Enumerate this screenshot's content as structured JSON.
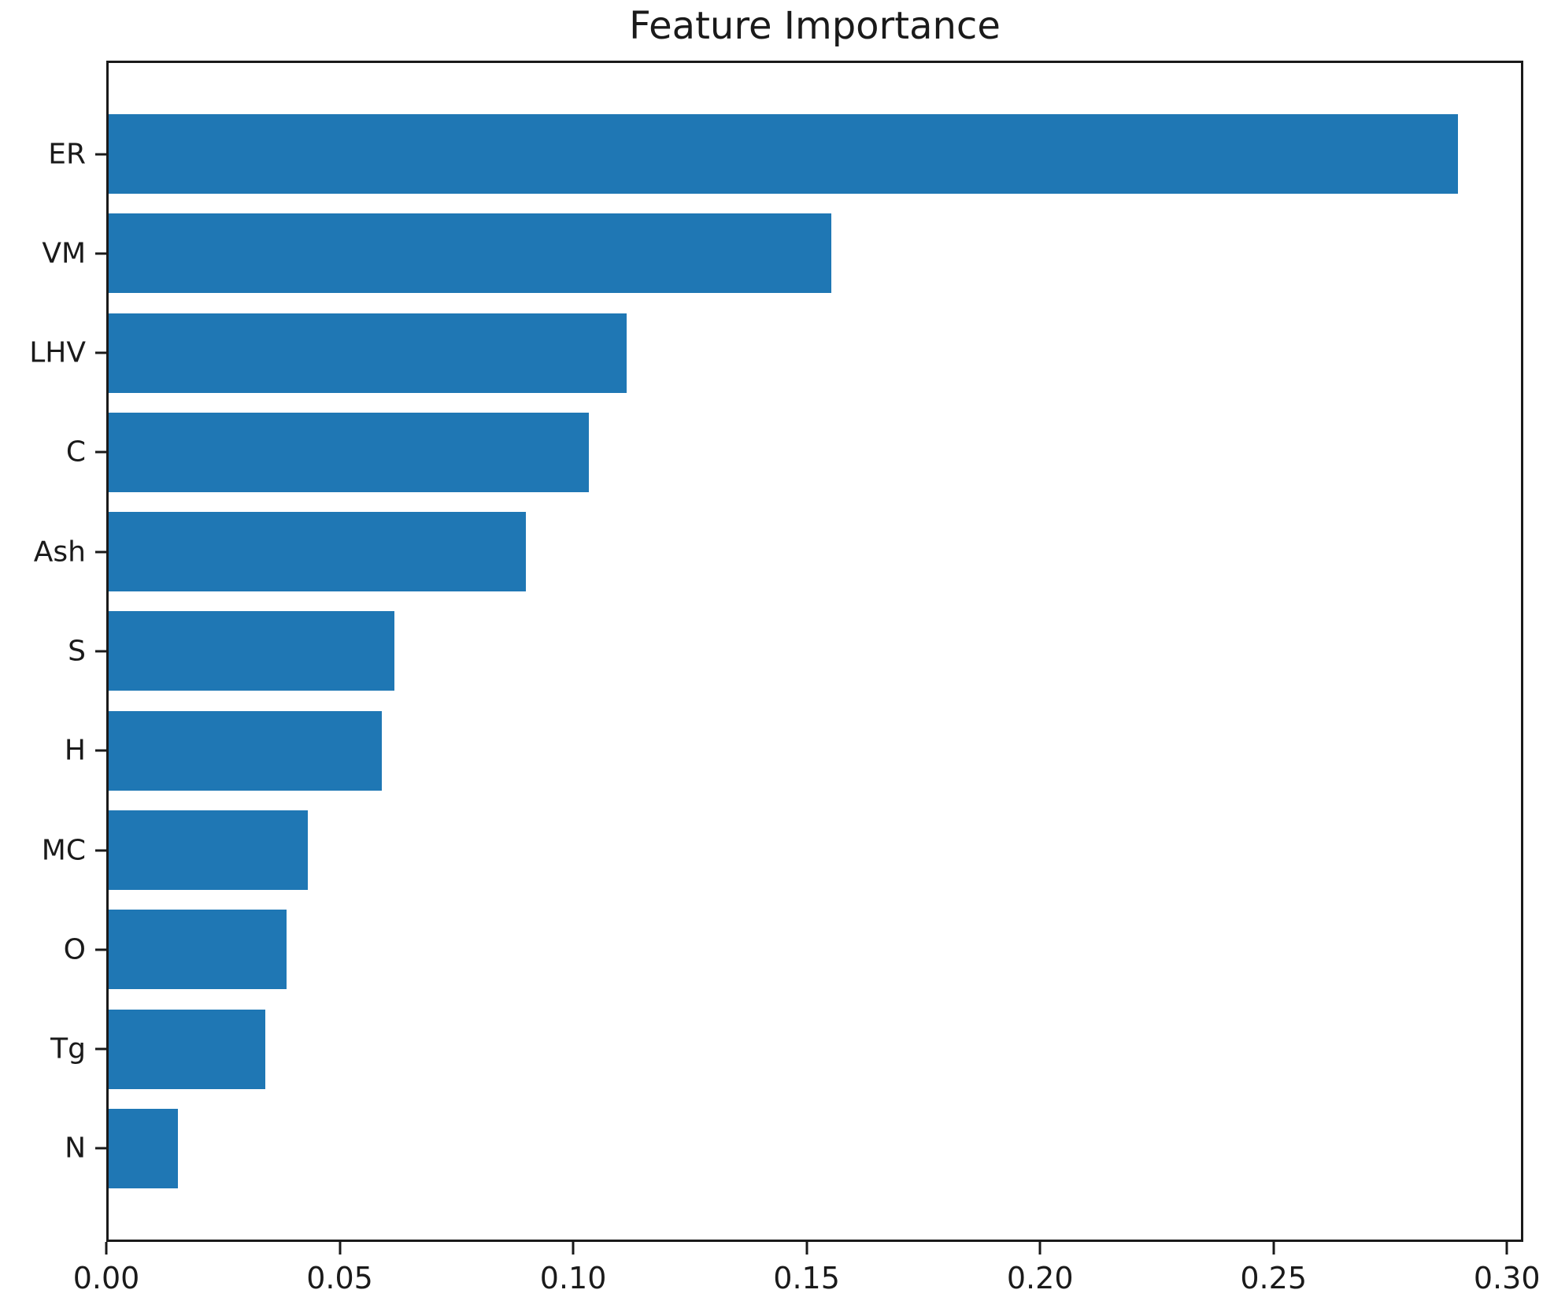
{
  "chart_data": {
    "type": "bar",
    "orientation": "horizontal",
    "title": "Feature Importance",
    "categories": [
      "ER",
      "VM",
      "LHV",
      "C",
      "Ash",
      "S",
      "H",
      "MC",
      "O",
      "Tg",
      "N"
    ],
    "values": [
      0.289,
      0.1547,
      0.111,
      0.1028,
      0.0893,
      0.0612,
      0.0585,
      0.0426,
      0.0381,
      0.0335,
      0.0148
    ],
    "xlabel": "",
    "ylabel": "",
    "xlim": [
      0,
      0.3035
    ],
    "xticks": [
      0.0,
      0.05,
      0.1,
      0.15,
      0.2,
      0.25,
      0.3
    ],
    "xtick_labels": [
      "0.00",
      "0.05",
      "0.10",
      "0.15",
      "0.20",
      "0.25",
      "0.30"
    ],
    "bar_color": "#1f77b4",
    "bar_height_fraction": 0.8,
    "grid": false,
    "legend_position": "none"
  }
}
